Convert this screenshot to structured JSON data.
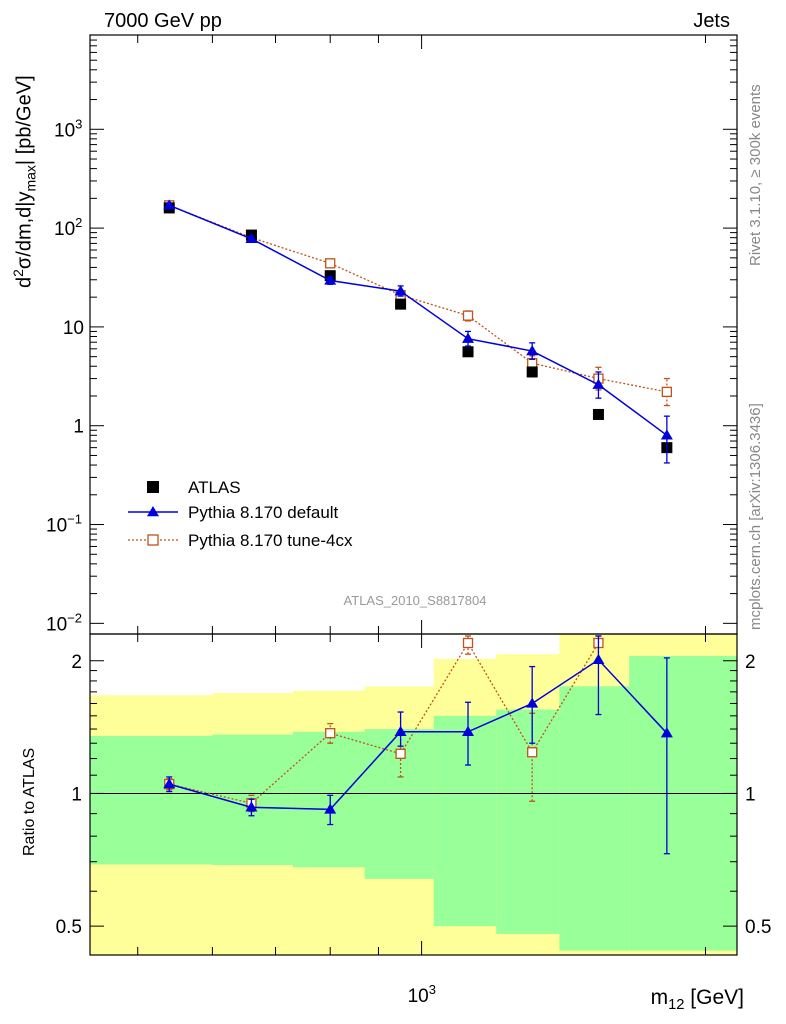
{
  "header": {
    "left": "7000 GeV pp",
    "right": "Jets"
  },
  "side_text": {
    "rivet": "Rivet 3.1.10, ≥ 300k events",
    "mcplots": "mcplots.cern.ch [arXiv:1306.3436]"
  },
  "analysis_label": "ATLAS_2010_S8817804",
  "colors": {
    "data": "#000000",
    "pythia_default": "#0000dd",
    "pythia_tune": "#c0521b",
    "band_inner": "#99ff99",
    "band_outer": "#ffff99"
  },
  "chart_data": [
    {
      "type": "scatter",
      "panel": "main",
      "ylabel": "d²σ/dm,d|y_max| [pb/GeV]",
      "yscale": "log",
      "ylim": [
        0.0078,
        9000
      ],
      "xscale": "log",
      "xlim": [
        445,
        2160
      ],
      "ytick_labels": [
        "10^-2",
        "10^-1",
        "1",
        "10",
        "10^2",
        "10^3"
      ],
      "x": [
        540,
        660,
        800,
        950,
        1120,
        1310,
        1540,
        1820
      ],
      "series": [
        {
          "name": "ATLAS",
          "marker": "filled-square",
          "values": [
            160,
            85,
            33,
            17,
            5.6,
            3.5,
            1.3,
            0.6
          ]
        },
        {
          "name": "Pythia 8.170 default",
          "marker": "filled-triangle",
          "line": "solid",
          "values": [
            170,
            78,
            29.5,
            23,
            7.6,
            5.7,
            2.6,
            0.8
          ],
          "err_low": [
            10,
            5,
            2.5,
            2.5,
            1.2,
            1.0,
            0.7,
            0.38
          ],
          "err_high": [
            10,
            5,
            2.5,
            3.0,
            1.4,
            1.2,
            0.9,
            0.45
          ]
        },
        {
          "name": "Pythia 8.170 tune-4cx",
          "marker": "open-square",
          "line": "dotted",
          "values": [
            170,
            80,
            44,
            21,
            13,
            4.3,
            3.0,
            2.2
          ],
          "err_low": [
            8,
            4,
            3,
            2,
            1.5,
            0.8,
            0.7,
            0.6
          ],
          "err_high": [
            8,
            4,
            3,
            2,
            1.5,
            0.8,
            0.9,
            0.8
          ]
        }
      ],
      "legend": "middle-left"
    },
    {
      "type": "scatter",
      "panel": "ratio",
      "ylabel": "Ratio to ATLAS",
      "xlabel": "m_12 [GeV]",
      "yscale": "log",
      "ylim": [
        0.43,
        2.3
      ],
      "xscale": "log",
      "xlim": [
        445,
        2160
      ],
      "ytick_labels": [
        "0.5",
        "1",
        "2"
      ],
      "xtick_labels": [
        "10^3"
      ],
      "x": [
        540,
        660,
        800,
        950,
        1120,
        1310,
        1540,
        1820
      ],
      "bands": {
        "edges": [
          445,
          600,
          730,
          870,
          1030,
          1200,
          1400,
          1660,
          2160
        ],
        "inner_low": [
          0.69,
          0.688,
          0.68,
          0.64,
          0.5,
          0.48,
          0.44,
          0.44
        ],
        "inner_high": [
          1.35,
          1.36,
          1.38,
          1.4,
          1.5,
          1.55,
          1.75,
          2.05
        ],
        "outer_low": [
          0.43,
          0.43,
          0.43,
          0.43,
          0.43,
          0.43,
          0.43,
          0.43
        ],
        "outer_high": [
          1.67,
          1.69,
          1.71,
          1.75,
          2.02,
          2.07,
          2.3,
          2.3
        ]
      },
      "series": [
        {
          "name": "Pythia 8.170 default",
          "values": [
            1.05,
            0.93,
            0.92,
            1.38,
            1.38,
            1.6,
            2.01,
            1.37
          ],
          "err_low": [
            0.04,
            0.04,
            0.07,
            0.1,
            0.22,
            0.3,
            0.5,
            0.64
          ],
          "err_high": [
            0.04,
            0.04,
            0.07,
            0.15,
            0.23,
            0.34,
            0.5,
            0.66
          ]
        },
        {
          "name": "Pythia 8.170 tune-4cx",
          "values": [
            1.05,
            0.95,
            1.37,
            1.23,
            2.27,
            1.24,
            2.3,
            null
          ],
          "err_low": [
            0.03,
            0.04,
            0.07,
            0.14,
            0.2,
            0.28,
            0.3,
            null
          ],
          "err_high": [
            0.03,
            0.04,
            0.07,
            0.14,
            0.2,
            0.28,
            0.3,
            null
          ]
        }
      ]
    }
  ]
}
